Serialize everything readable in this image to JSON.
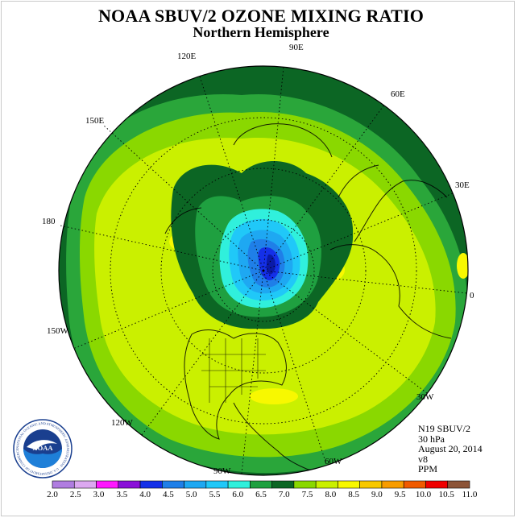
{
  "header": {
    "title": "NOAA SBUV/2 OZONE MIXING RATIO",
    "subtitle": "Northern Hemisphere"
  },
  "map": {
    "longitude_labels": [
      "90E",
      "60E",
      "30E",
      "0",
      "30W",
      "60W",
      "90W",
      "120W",
      "150W",
      "180",
      "150E",
      "120E"
    ]
  },
  "info": {
    "satellite": "N19 SBUV/2",
    "level": "30 hPa",
    "date": "August 20, 2014",
    "version": "v8",
    "units": "PPM"
  },
  "legend": {
    "ticks": [
      "2.0",
      "2.5",
      "3.0",
      "3.5",
      "4.0",
      "4.5",
      "5.0",
      "5.5",
      "6.0",
      "6.5",
      "7.0",
      "7.5",
      "8.0",
      "8.5",
      "9.0",
      "9.5",
      "10.0",
      "10.5",
      "11.0"
    ],
    "colors": [
      "#b07de0",
      "#dca8f0",
      "#ff18ff",
      "#8a10d8",
      "#1430e8",
      "#1f7fe8",
      "#1ea8f2",
      "#20c8f8",
      "#30f0dc",
      "#1fa040",
      "#0c6624",
      "#8ad800",
      "#caf000",
      "#f8f800",
      "#f8c800",
      "#f89c00",
      "#f05a00",
      "#f00000",
      "#8c5438"
    ]
  },
  "logo": {
    "text": "NOAA",
    "ring_text": "NATIONAL OCEANIC AND ATMOSPHERIC ADMINISTRATION · U.S. DEPARTMENT OF COMMERCE"
  }
}
